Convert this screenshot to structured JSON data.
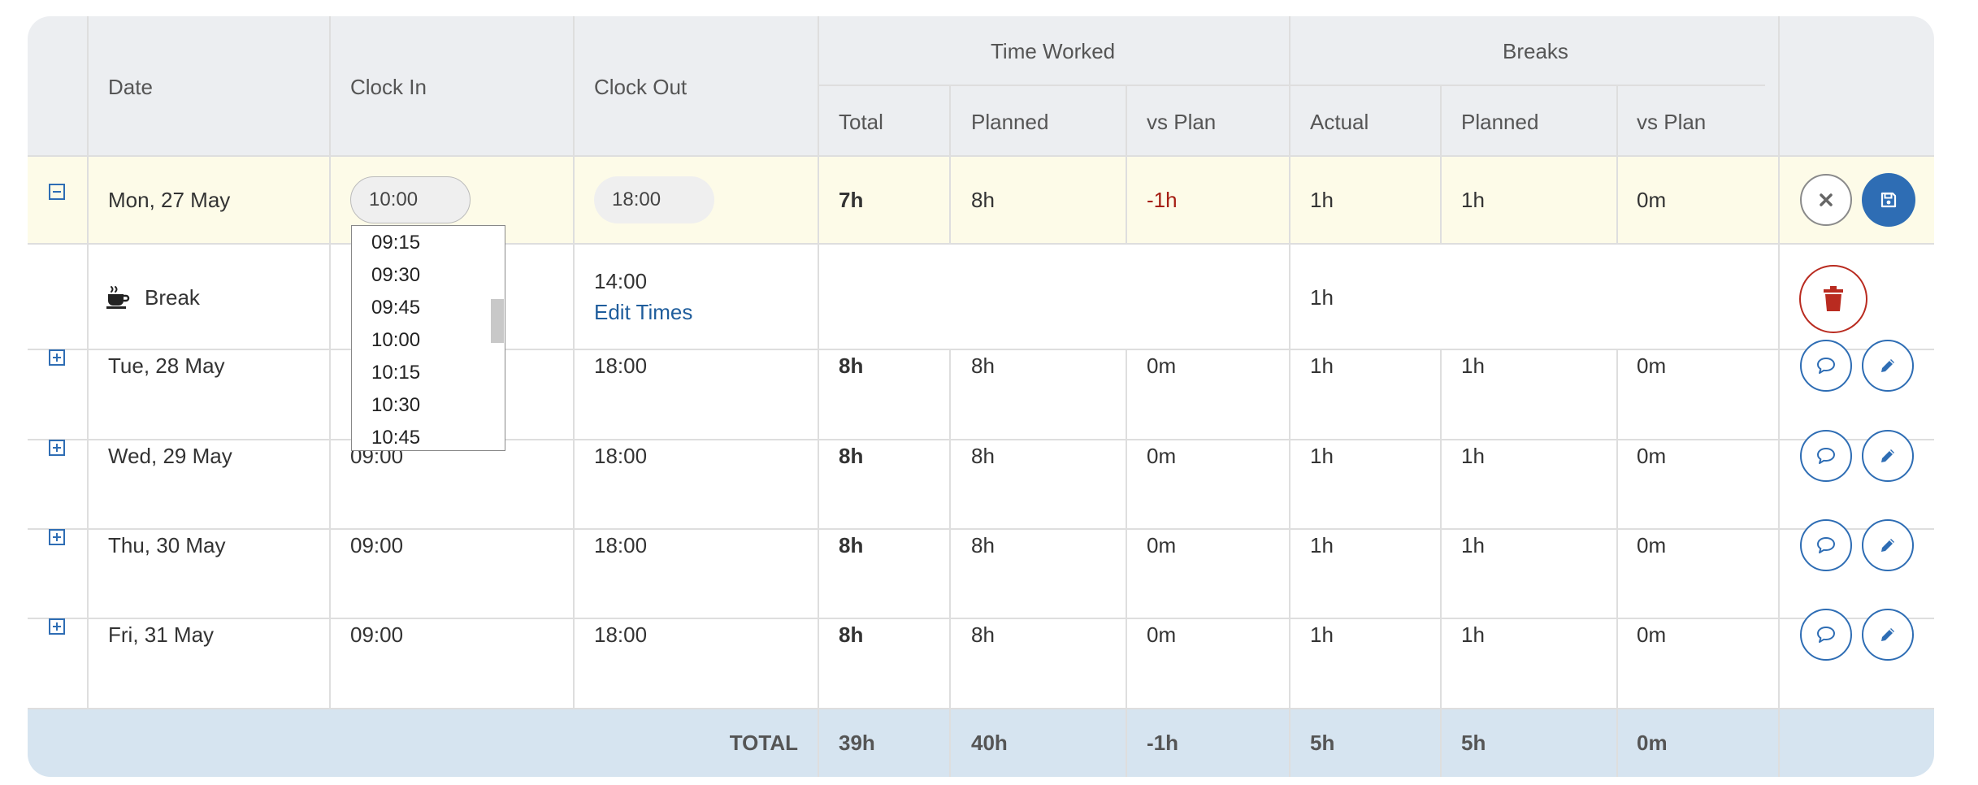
{
  "header": {
    "date": "Date",
    "clock_in": "Clock In",
    "clock_out": "Clock Out",
    "time_worked": "Time Worked",
    "breaks": "Breaks",
    "total": "Total",
    "planned": "Planned",
    "vs_plan": "vs Plan",
    "actual": "Actual",
    "breaks_planned": "Planned",
    "breaks_vs_plan": "vs Plan"
  },
  "editing_row": {
    "date": "Mon, 27 May",
    "clock_in_value": "10:00",
    "clock_out_value": "18:00",
    "total": "7h",
    "planned": "8h",
    "vs_plan": "-1h",
    "break_actual": "1h",
    "break_planned": "1h",
    "break_vs_plan": "0m"
  },
  "break_row": {
    "label": "Break",
    "end_time": "14:00",
    "edit_link": "Edit Times",
    "actual": "1h"
  },
  "dropdown": {
    "options": [
      "09:15",
      "09:30",
      "09:45",
      "10:00",
      "10:15",
      "10:30",
      "10:45"
    ]
  },
  "rows": [
    {
      "date": "Tue, 28 May",
      "clock_in": "",
      "clock_out": "18:00",
      "total": "8h",
      "planned": "8h",
      "vs_plan": "0m",
      "break_actual": "1h",
      "break_planned": "1h",
      "break_vs_plan": "0m"
    },
    {
      "date": "Wed, 29 May",
      "clock_in": "09:00",
      "clock_out": "18:00",
      "total": "8h",
      "planned": "8h",
      "vs_plan": "0m",
      "break_actual": "1h",
      "break_planned": "1h",
      "break_vs_plan": "0m"
    },
    {
      "date": "Thu, 30 May",
      "clock_in": "09:00",
      "clock_out": "18:00",
      "total": "8h",
      "planned": "8h",
      "vs_plan": "0m",
      "break_actual": "1h",
      "break_planned": "1h",
      "break_vs_plan": "0m"
    },
    {
      "date": "Fri, 31 May",
      "clock_in": "09:00",
      "clock_out": "18:00",
      "total": "8h",
      "planned": "8h",
      "vs_plan": "0m",
      "break_actual": "1h",
      "break_planned": "1h",
      "break_vs_plan": "0m"
    }
  ],
  "totals": {
    "label": "TOTAL",
    "total": "39h",
    "planned": "40h",
    "vs_plan": "-1h",
    "break_actual": "5h",
    "break_planned": "5h",
    "break_vs_plan": "0m"
  },
  "colors": {
    "header_bg": "#eceef1",
    "editing_row_bg": "#fdfbe8",
    "total_bg": "#d6e4f0",
    "accent": "#2e6db4",
    "negative": "#a51d12",
    "delete": "#b92b20"
  },
  "icons": {
    "collapse": "minus-square-icon",
    "expand": "plus-square-icon",
    "break": "coffee-cup-icon",
    "cancel": "close-icon",
    "save": "floppy-disk-icon",
    "delete": "trash-icon",
    "comment": "speech-bubble-icon",
    "edit": "pencil-icon"
  }
}
